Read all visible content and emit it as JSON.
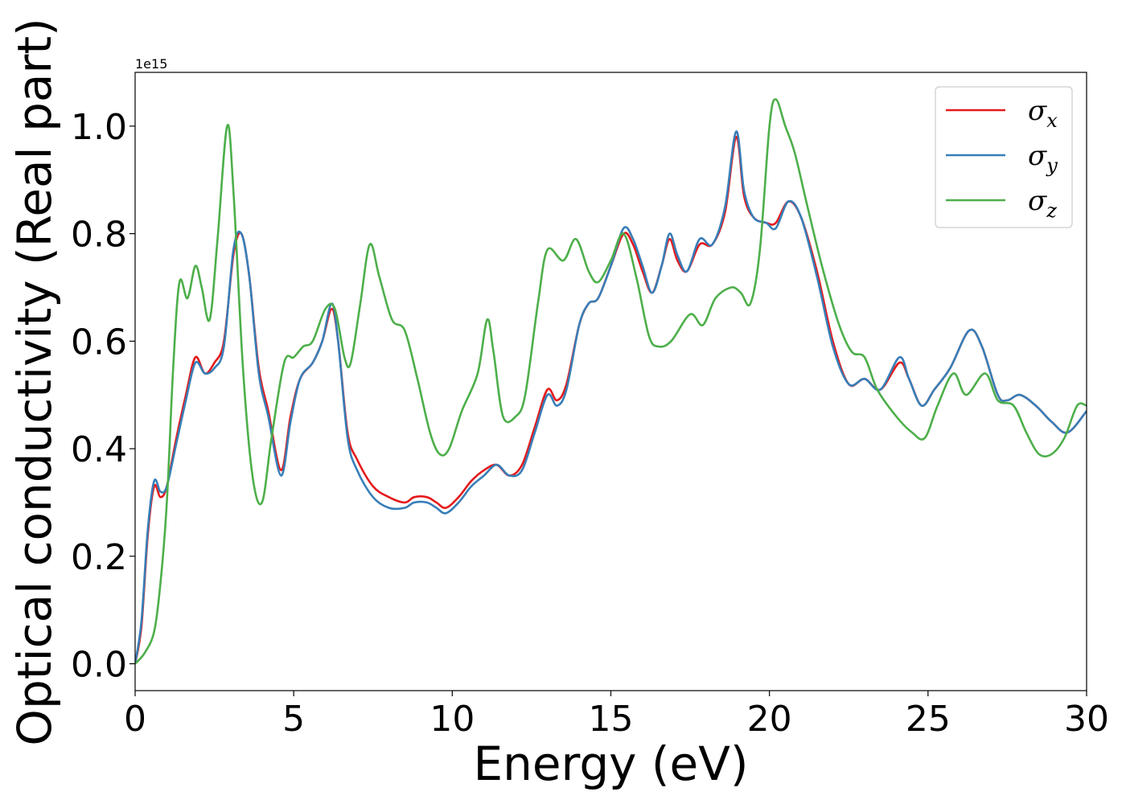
{
  "chart_data": {
    "type": "line",
    "title": "",
    "xlabel": "Energy (eV)",
    "ylabel": "Optical conductivity (Real part)",
    "y_offset_label": "1e15",
    "xlim": [
      0,
      30
    ],
    "ylim": [
      -0.05,
      1.1
    ],
    "xticks": [
      0,
      5,
      10,
      15,
      20,
      25,
      30
    ],
    "xtick_labels": [
      "0",
      "5",
      "10",
      "15",
      "20",
      "25",
      "30"
    ],
    "yticks": [
      0.0,
      0.2,
      0.4,
      0.6,
      0.8,
      1.0
    ],
    "ytick_labels": [
      "0.0",
      "0.2",
      "0.4",
      "0.6",
      "0.8",
      "1.0"
    ],
    "grid": false,
    "legend_position": "top-right",
    "series": [
      {
        "name": "σ_x",
        "legend_base": "σ",
        "legend_sub": "x",
        "color": "#e41a1c",
        "points": [
          [
            0,
            0
          ],
          [
            0.2,
            0.07
          ],
          [
            0.4,
            0.24
          ],
          [
            0.6,
            0.33
          ],
          [
            0.8,
            0.31
          ],
          [
            1.0,
            0.33
          ],
          [
            1.3,
            0.42
          ],
          [
            1.6,
            0.5
          ],
          [
            1.9,
            0.57
          ],
          [
            2.2,
            0.54
          ],
          [
            2.5,
            0.56
          ],
          [
            2.8,
            0.6
          ],
          [
            3.1,
            0.76
          ],
          [
            3.35,
            0.8
          ],
          [
            3.6,
            0.72
          ],
          [
            3.9,
            0.55
          ],
          [
            4.2,
            0.47
          ],
          [
            4.6,
            0.36
          ],
          [
            4.9,
            0.46
          ],
          [
            5.2,
            0.53
          ],
          [
            5.6,
            0.56
          ],
          [
            5.9,
            0.6
          ],
          [
            6.2,
            0.66
          ],
          [
            6.4,
            0.6
          ],
          [
            6.7,
            0.43
          ],
          [
            7.0,
            0.38
          ],
          [
            7.5,
            0.33
          ],
          [
            8.0,
            0.31
          ],
          [
            8.5,
            0.3
          ],
          [
            8.8,
            0.31
          ],
          [
            9.2,
            0.31
          ],
          [
            9.5,
            0.3
          ],
          [
            9.8,
            0.29
          ],
          [
            10.2,
            0.31
          ],
          [
            10.6,
            0.34
          ],
          [
            11.0,
            0.36
          ],
          [
            11.4,
            0.37
          ],
          [
            11.8,
            0.35
          ],
          [
            12.2,
            0.37
          ],
          [
            12.6,
            0.44
          ],
          [
            13.0,
            0.51
          ],
          [
            13.3,
            0.49
          ],
          [
            13.6,
            0.52
          ],
          [
            14.0,
            0.63
          ],
          [
            14.3,
            0.67
          ],
          [
            14.6,
            0.68
          ],
          [
            15.0,
            0.74
          ],
          [
            15.4,
            0.8
          ],
          [
            15.7,
            0.78
          ],
          [
            16.0,
            0.73
          ],
          [
            16.3,
            0.69
          ],
          [
            16.6,
            0.74
          ],
          [
            16.85,
            0.79
          ],
          [
            17.1,
            0.75
          ],
          [
            17.4,
            0.73
          ],
          [
            17.8,
            0.78
          ],
          [
            18.2,
            0.78
          ],
          [
            18.6,
            0.84
          ],
          [
            18.95,
            0.98
          ],
          [
            19.2,
            0.87
          ],
          [
            19.5,
            0.83
          ],
          [
            19.9,
            0.82
          ],
          [
            20.2,
            0.82
          ],
          [
            20.6,
            0.86
          ],
          [
            21.0,
            0.83
          ],
          [
            21.5,
            0.73
          ],
          [
            22.0,
            0.6
          ],
          [
            22.5,
            0.52
          ],
          [
            23.0,
            0.53
          ],
          [
            23.5,
            0.51
          ],
          [
            24.1,
            0.56
          ],
          [
            24.4,
            0.53
          ],
          [
            24.8,
            0.48
          ],
          [
            25.2,
            0.51
          ],
          [
            25.7,
            0.55
          ],
          [
            26.3,
            0.62
          ],
          [
            26.7,
            0.59
          ],
          [
            27.2,
            0.5
          ],
          [
            27.5,
            0.49
          ],
          [
            27.9,
            0.5
          ],
          [
            28.4,
            0.48
          ],
          [
            28.9,
            0.45
          ],
          [
            29.4,
            0.43
          ],
          [
            30.0,
            0.47
          ]
        ]
      },
      {
        "name": "σ_y",
        "legend_base": "σ",
        "legend_sub": "y",
        "color": "#377eb8",
        "points": [
          [
            0,
            0
          ],
          [
            0.2,
            0.08
          ],
          [
            0.4,
            0.25
          ],
          [
            0.6,
            0.34
          ],
          [
            0.8,
            0.32
          ],
          [
            1.0,
            0.33
          ],
          [
            1.3,
            0.41
          ],
          [
            1.6,
            0.49
          ],
          [
            1.9,
            0.56
          ],
          [
            2.2,
            0.54
          ],
          [
            2.5,
            0.55
          ],
          [
            2.8,
            0.59
          ],
          [
            3.1,
            0.77
          ],
          [
            3.35,
            0.8
          ],
          [
            3.6,
            0.72
          ],
          [
            3.9,
            0.54
          ],
          [
            4.2,
            0.46
          ],
          [
            4.6,
            0.35
          ],
          [
            4.9,
            0.45
          ],
          [
            5.2,
            0.53
          ],
          [
            5.6,
            0.56
          ],
          [
            5.9,
            0.6
          ],
          [
            6.2,
            0.67
          ],
          [
            6.4,
            0.6
          ],
          [
            6.7,
            0.42
          ],
          [
            7.0,
            0.36
          ],
          [
            7.5,
            0.31
          ],
          [
            8.0,
            0.29
          ],
          [
            8.5,
            0.29
          ],
          [
            8.8,
            0.3
          ],
          [
            9.2,
            0.3
          ],
          [
            9.5,
            0.29
          ],
          [
            9.8,
            0.28
          ],
          [
            10.2,
            0.3
          ],
          [
            10.6,
            0.33
          ],
          [
            11.0,
            0.35
          ],
          [
            11.4,
            0.37
          ],
          [
            11.8,
            0.35
          ],
          [
            12.2,
            0.36
          ],
          [
            12.6,
            0.43
          ],
          [
            13.0,
            0.5
          ],
          [
            13.3,
            0.48
          ],
          [
            13.6,
            0.51
          ],
          [
            14.0,
            0.63
          ],
          [
            14.3,
            0.67
          ],
          [
            14.6,
            0.68
          ],
          [
            15.0,
            0.74
          ],
          [
            15.4,
            0.81
          ],
          [
            15.7,
            0.79
          ],
          [
            16.0,
            0.74
          ],
          [
            16.3,
            0.69
          ],
          [
            16.6,
            0.74
          ],
          [
            16.85,
            0.8
          ],
          [
            17.1,
            0.76
          ],
          [
            17.4,
            0.73
          ],
          [
            17.8,
            0.79
          ],
          [
            18.2,
            0.78
          ],
          [
            18.6,
            0.85
          ],
          [
            18.95,
            0.99
          ],
          [
            19.2,
            0.88
          ],
          [
            19.5,
            0.83
          ],
          [
            19.9,
            0.82
          ],
          [
            20.2,
            0.81
          ],
          [
            20.6,
            0.86
          ],
          [
            21.0,
            0.83
          ],
          [
            21.5,
            0.72
          ],
          [
            22.0,
            0.59
          ],
          [
            22.5,
            0.52
          ],
          [
            23.0,
            0.53
          ],
          [
            23.5,
            0.51
          ],
          [
            24.1,
            0.57
          ],
          [
            24.4,
            0.53
          ],
          [
            24.8,
            0.48
          ],
          [
            25.2,
            0.51
          ],
          [
            25.7,
            0.55
          ],
          [
            26.3,
            0.62
          ],
          [
            26.7,
            0.59
          ],
          [
            27.2,
            0.5
          ],
          [
            27.5,
            0.49
          ],
          [
            27.9,
            0.5
          ],
          [
            28.4,
            0.48
          ],
          [
            28.9,
            0.45
          ],
          [
            29.4,
            0.43
          ],
          [
            30.0,
            0.47
          ]
        ]
      },
      {
        "name": "σ_z",
        "legend_base": "σ",
        "legend_sub": "z",
        "color": "#4daf4a",
        "points": [
          [
            0,
            0
          ],
          [
            0.3,
            0.02
          ],
          [
            0.6,
            0.06
          ],
          [
            0.8,
            0.15
          ],
          [
            1.0,
            0.3
          ],
          [
            1.2,
            0.55
          ],
          [
            1.4,
            0.71
          ],
          [
            1.65,
            0.68
          ],
          [
            1.9,
            0.74
          ],
          [
            2.1,
            0.7
          ],
          [
            2.35,
            0.64
          ],
          [
            2.6,
            0.79
          ],
          [
            2.9,
            1.0
          ],
          [
            3.1,
            0.88
          ],
          [
            3.4,
            0.55
          ],
          [
            3.7,
            0.35
          ],
          [
            4.0,
            0.3
          ],
          [
            4.3,
            0.42
          ],
          [
            4.7,
            0.56
          ],
          [
            5.0,
            0.57
          ],
          [
            5.3,
            0.59
          ],
          [
            5.6,
            0.6
          ],
          [
            6.0,
            0.66
          ],
          [
            6.3,
            0.66
          ],
          [
            6.6,
            0.57
          ],
          [
            6.8,
            0.56
          ],
          [
            7.1,
            0.67
          ],
          [
            7.4,
            0.78
          ],
          [
            7.7,
            0.72
          ],
          [
            8.1,
            0.64
          ],
          [
            8.5,
            0.62
          ],
          [
            8.9,
            0.53
          ],
          [
            9.3,
            0.43
          ],
          [
            9.6,
            0.39
          ],
          [
            9.9,
            0.4
          ],
          [
            10.3,
            0.47
          ],
          [
            10.8,
            0.54
          ],
          [
            11.1,
            0.64
          ],
          [
            11.3,
            0.58
          ],
          [
            11.6,
            0.46
          ],
          [
            12.0,
            0.46
          ],
          [
            12.3,
            0.5
          ],
          [
            12.7,
            0.67
          ],
          [
            13.0,
            0.77
          ],
          [
            13.5,
            0.75
          ],
          [
            13.9,
            0.79
          ],
          [
            14.3,
            0.73
          ],
          [
            14.6,
            0.71
          ],
          [
            15.0,
            0.75
          ],
          [
            15.4,
            0.8
          ],
          [
            15.8,
            0.72
          ],
          [
            16.2,
            0.61
          ],
          [
            16.5,
            0.59
          ],
          [
            16.9,
            0.6
          ],
          [
            17.5,
            0.65
          ],
          [
            17.9,
            0.63
          ],
          [
            18.3,
            0.68
          ],
          [
            18.8,
            0.7
          ],
          [
            19.1,
            0.69
          ],
          [
            19.4,
            0.67
          ],
          [
            19.7,
            0.77
          ],
          [
            20.0,
            1.0
          ],
          [
            20.2,
            1.05
          ],
          [
            20.5,
            1.0
          ],
          [
            20.8,
            0.95
          ],
          [
            21.2,
            0.85
          ],
          [
            21.7,
            0.73
          ],
          [
            22.2,
            0.63
          ],
          [
            22.6,
            0.58
          ],
          [
            23.0,
            0.57
          ],
          [
            23.4,
            0.51
          ],
          [
            24.0,
            0.46
          ],
          [
            24.5,
            0.43
          ],
          [
            24.9,
            0.42
          ],
          [
            25.3,
            0.48
          ],
          [
            25.8,
            0.54
          ],
          [
            26.2,
            0.5
          ],
          [
            26.8,
            0.54
          ],
          [
            27.2,
            0.49
          ],
          [
            27.7,
            0.48
          ],
          [
            28.1,
            0.43
          ],
          [
            28.5,
            0.39
          ],
          [
            28.9,
            0.39
          ],
          [
            29.3,
            0.42
          ],
          [
            29.7,
            0.48
          ],
          [
            30.0,
            0.48
          ]
        ]
      }
    ]
  }
}
